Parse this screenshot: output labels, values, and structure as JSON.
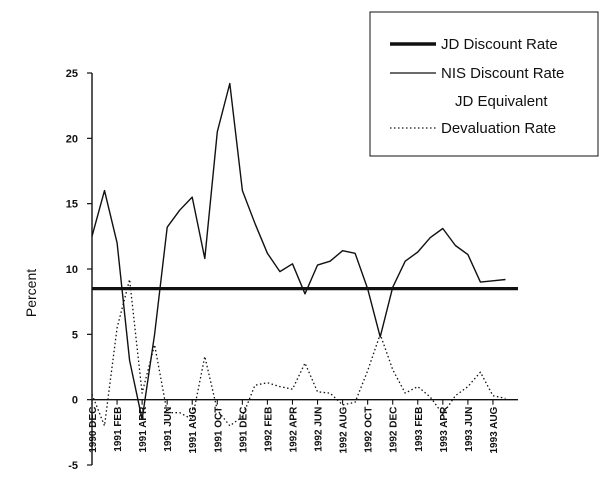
{
  "chart_data": {
    "type": "line",
    "title": "",
    "xlabel": "",
    "ylabel": "Percent",
    "ylim": [
      -5,
      25
    ],
    "yticks": [
      -5,
      0,
      5,
      10,
      15,
      20,
      25
    ],
    "grid": false,
    "legend_position": "top-right",
    "tick_labels": [
      "1990 DEC",
      "1991 FEB",
      "1991 APR",
      "1991 JUN",
      "1991 AUG",
      "1991 OCT",
      "1991 DEC",
      "1992 FEB",
      "1992 APR",
      "1992 JUN",
      "1992 AUG",
      "1992 OCT",
      "1992 DEC",
      "1993 FEB",
      "1993 APR",
      "1993 JUN",
      "1993 AUG"
    ],
    "tick_months": [
      0,
      2,
      4,
      6,
      8,
      10,
      12,
      14,
      16,
      18,
      20,
      22,
      24,
      26,
      28,
      30,
      32
    ],
    "legend": [
      {
        "label": "JD Discount Rate",
        "style": "thick"
      },
      {
        "label": "NIS Discount Rate",
        "style": "solid"
      },
      {
        "label": "JD Equivalent",
        "style": "none"
      },
      {
        "label": "Devaluation Rate",
        "style": "dotted"
      }
    ],
    "series": [
      {
        "name": "JD Discount Rate",
        "style": "thick",
        "points": [
          [
            0,
            8.5
          ],
          [
            34,
            8.5
          ]
        ]
      },
      {
        "name": "NIS Discount Rate",
        "style": "solid",
        "points": [
          [
            0,
            12.5
          ],
          [
            1,
            16
          ],
          [
            2,
            12
          ],
          [
            3,
            3
          ],
          [
            4,
            -1.5
          ],
          [
            5,
            5
          ],
          [
            6,
            13.2
          ],
          [
            7,
            14.5
          ],
          [
            8,
            15.5
          ],
          [
            9,
            10.8
          ],
          [
            10,
            20.5
          ],
          [
            11,
            24.2
          ],
          [
            12,
            16
          ],
          [
            13,
            13.5
          ],
          [
            14,
            11.2
          ],
          [
            15,
            9.8
          ],
          [
            16,
            10.4
          ],
          [
            17,
            8.1
          ],
          [
            18,
            10.3
          ],
          [
            19,
            10.6
          ],
          [
            20,
            11.4
          ],
          [
            21,
            11.2
          ],
          [
            22,
            8.5
          ],
          [
            23,
            4.8
          ],
          [
            24,
            8.6
          ],
          [
            25,
            10.6
          ],
          [
            26,
            11.3
          ],
          [
            27,
            12.4
          ],
          [
            28,
            13.1
          ],
          [
            29,
            11.8
          ],
          [
            30,
            11.1
          ],
          [
            31,
            9
          ],
          [
            32,
            9.1
          ],
          [
            33,
            9.2
          ]
        ]
      },
      {
        "name": "Devaluation Rate",
        "style": "dotted",
        "points": [
          [
            0,
            0.4
          ],
          [
            1,
            -2
          ],
          [
            2,
            5.5
          ],
          [
            3,
            9.2
          ],
          [
            4,
            0.5
          ],
          [
            5,
            4.2
          ],
          [
            6,
            -1
          ],
          [
            7,
            -1
          ],
          [
            8,
            -1.5
          ],
          [
            9,
            3.3
          ],
          [
            10,
            -0.8
          ],
          [
            11,
            -2
          ],
          [
            12,
            -1.3
          ],
          [
            13,
            1.1
          ],
          [
            14,
            1.3
          ],
          [
            15,
            1
          ],
          [
            16,
            0.8
          ],
          [
            17,
            2.8
          ],
          [
            18,
            0.6
          ],
          [
            19,
            0.5
          ],
          [
            20,
            -0.4
          ],
          [
            21,
            -0.2
          ],
          [
            22,
            2.2
          ],
          [
            23,
            5
          ],
          [
            24,
            2.3
          ],
          [
            25,
            0.5
          ],
          [
            26,
            1
          ],
          [
            27,
            0.2
          ],
          [
            28,
            -1.1
          ],
          [
            29,
            0.3
          ],
          [
            30,
            1
          ],
          [
            31,
            2.1
          ],
          [
            32,
            0.3
          ],
          [
            33,
            0.1
          ]
        ]
      }
    ]
  }
}
